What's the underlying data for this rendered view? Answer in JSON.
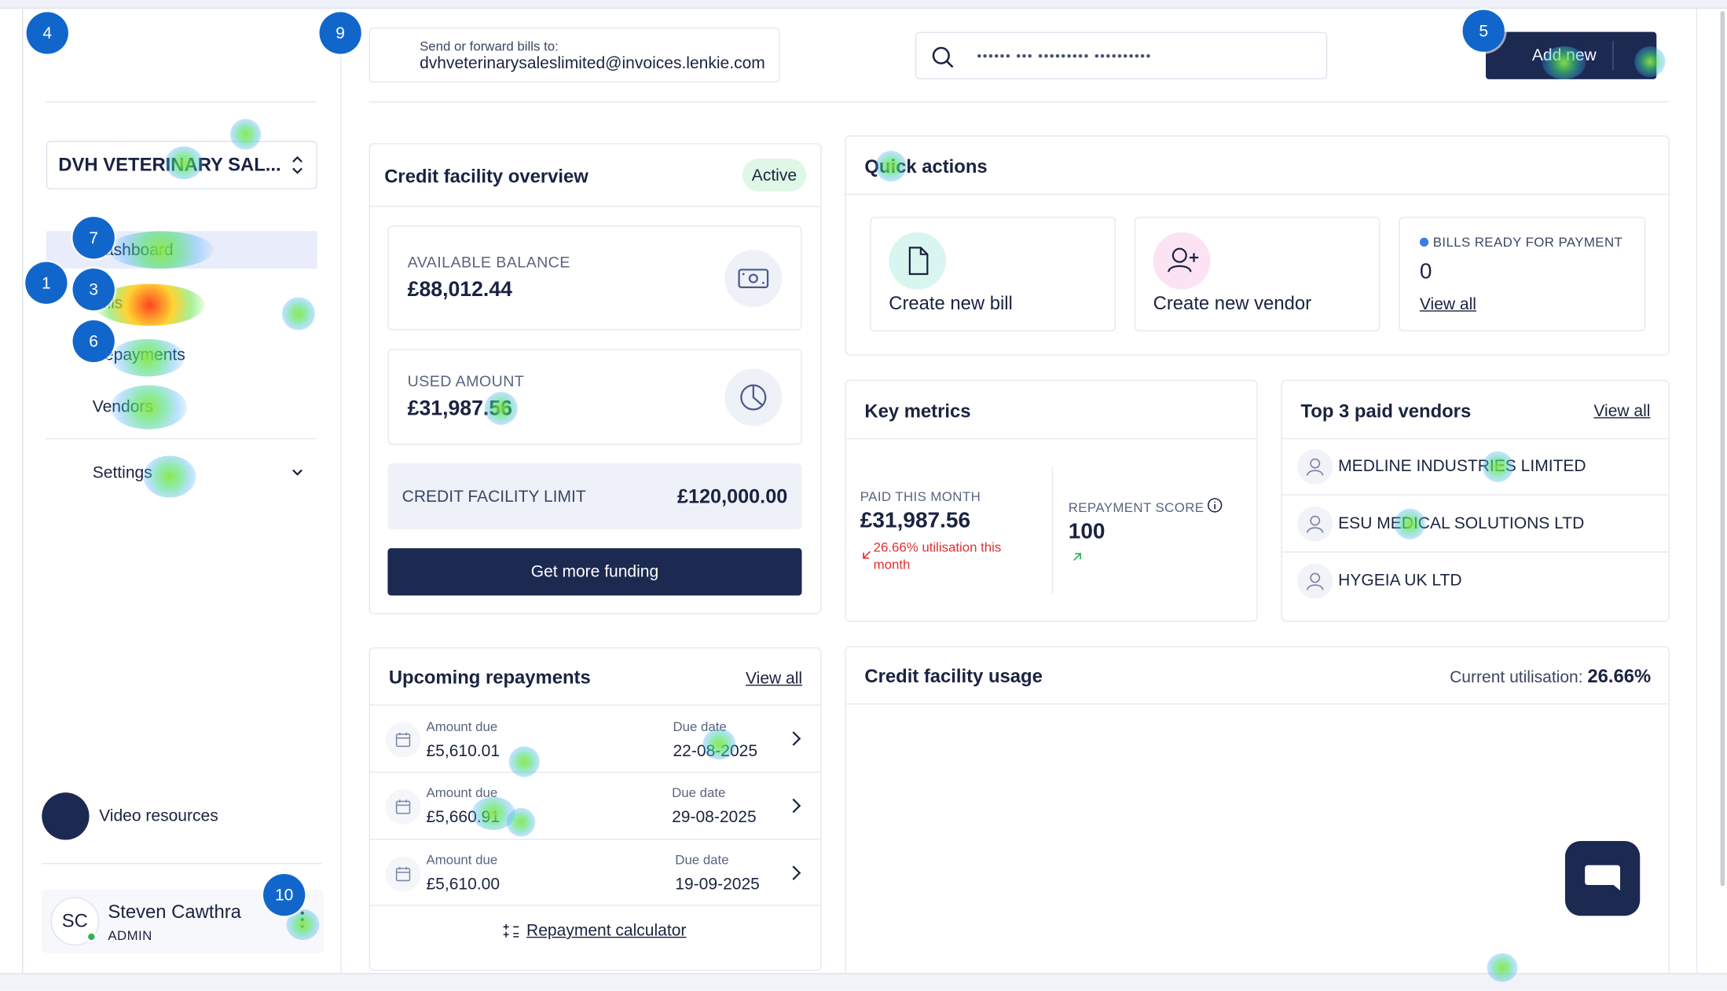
{
  "forward": {
    "small": "Send or forward bills to:",
    "email": "dvhveterinarysaleslimited@invoices.lenkie.com"
  },
  "search": {
    "value": "•••••• ••• ••••••••• ••••••••••"
  },
  "header": {
    "add_new": "Add new"
  },
  "sidebar": {
    "company": "DVH VETERINARY SAL...",
    "items": [
      {
        "label": "Dashboard"
      },
      {
        "label": "Bills"
      },
      {
        "label": "Repayments"
      },
      {
        "label": "Vendors"
      },
      {
        "label": "Settings"
      }
    ],
    "video_resources": "Video resources",
    "user": {
      "initials": "SC",
      "name": "Steven Cawthra",
      "role": "ADMIN"
    }
  },
  "credit": {
    "title": "Credit facility overview",
    "status": "Active",
    "available_label": "AVAILABLE BALANCE",
    "available_value": "£88,012.44",
    "used_label": "USED AMOUNT",
    "used_value": "£31,987.56",
    "limit_label": "CREDIT FACILITY LIMIT",
    "limit_value": "£120,000.00",
    "funding_button": "Get more funding"
  },
  "quick_actions": {
    "title": "Quick actions",
    "create_bill": "Create new bill",
    "create_vendor": "Create new vendor",
    "bills_ready_label": "BILLS READY FOR PAYMENT",
    "bills_ready_count": "0",
    "view_all": "View all"
  },
  "key_metrics": {
    "title": "Key metrics",
    "paid_label": "PAID THIS MONTH",
    "paid_value": "£31,987.56",
    "paid_note_line1": "26.66% utilisation this",
    "paid_note_line2": "month",
    "score_label": "REPAYMENT SCORE",
    "score_value": "100"
  },
  "top_vendors": {
    "title": "Top 3 paid vendors",
    "view_all": "View all",
    "vendors": [
      {
        "name": "MEDLINE INDUSTRIES LIMITED"
      },
      {
        "name": "ESU MEDICAL SOLUTIONS LTD"
      },
      {
        "name": "HYGEIA UK LTD"
      }
    ]
  },
  "repayments": {
    "title": "Upcoming repayments",
    "view_all": "View all",
    "amount_label": "Amount due",
    "due_label": "Due date",
    "rows": [
      {
        "amount": "£5,610.01",
        "due": "22-08-2025"
      },
      {
        "amount": "£5,660.91",
        "due": "29-08-2025"
      },
      {
        "amount": "£5,610.00",
        "due": "19-09-2025"
      }
    ],
    "calculator": "Repayment calculator"
  },
  "usage": {
    "title": "Credit facility usage",
    "current_label": "Current utilisation:",
    "current_value": "26.66%"
  },
  "markers": [
    "4",
    "9",
    "5",
    "7",
    "1",
    "3",
    "6",
    "10"
  ],
  "colors": {
    "navy": "#1c2951",
    "active_badge": "#dff7e6",
    "active_nav": "#e8ecfb",
    "negative": "#e03131",
    "positive": "#2fb455",
    "marker": "#1166cc"
  }
}
